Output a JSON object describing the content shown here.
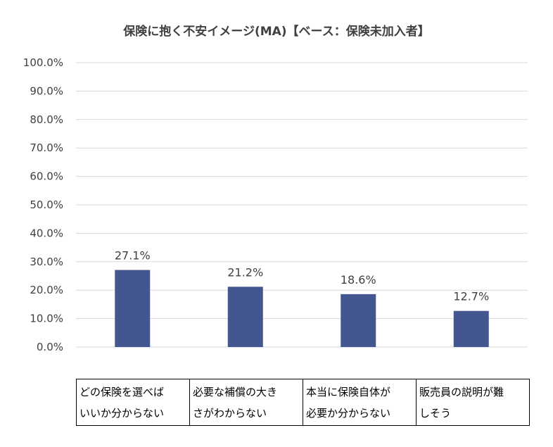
{
  "chart_data": {
    "type": "bar",
    "title": "保険に抱く不安イメージ(MA)【ベース：保険未加入者】",
    "categories": [
      "どの保険を選べばいいか分からない",
      "必要な補償の大きさがわからない",
      "本当に保険自体が必要か分からない",
      "販売員の説明が難しそう"
    ],
    "category_lines": [
      [
        "どの保険を選べば",
        "いいか分からない"
      ],
      [
        "必要な補償の大き",
        "さがわからない"
      ],
      [
        "本当に保険自体が",
        "必要か分からない"
      ],
      [
        "販売員の説明が難",
        "しそう"
      ]
    ],
    "values": [
      27.1,
      21.2,
      18.6,
      12.7
    ],
    "data_labels": [
      "27.1%",
      "21.2%",
      "18.6%",
      "12.7%"
    ],
    "ylim": [
      0,
      100
    ],
    "yticks": [
      "0.0%",
      "10.0%",
      "20.0%",
      "30.0%",
      "40.0%",
      "50.0%",
      "60.0%",
      "70.0%",
      "80.0%",
      "90.0%",
      "100.0%"
    ],
    "grid": true,
    "legend": "none",
    "bar_color": "#44568F",
    "grid_color": "#D9D9D9",
    "text_color": "#404040"
  }
}
